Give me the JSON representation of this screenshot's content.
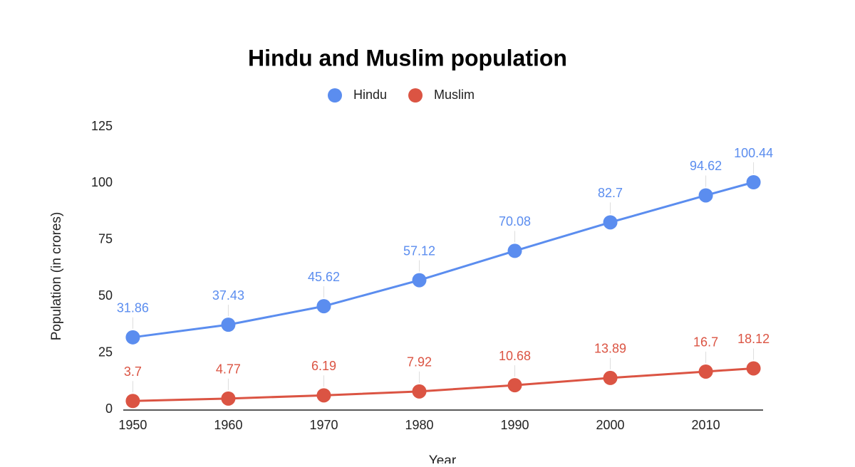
{
  "chart_data": {
    "type": "line",
    "title": "Hindu and Muslim population",
    "x_label": "Year",
    "y_label": "Population (in crores)",
    "x": [
      1950,
      1960,
      1970,
      1980,
      1990,
      2000,
      2010,
      2015
    ],
    "series": [
      {
        "name": "Hindu",
        "color": "#5b8def",
        "values": [
          31.86,
          37.43,
          45.62,
          57.12,
          70.08,
          82.7,
          94.62,
          100.44
        ]
      },
      {
        "name": "Muslim",
        "color": "#db5443",
        "values": [
          3.7,
          4.77,
          6.19,
          7.92,
          10.68,
          13.89,
          16.7,
          18.12
        ]
      }
    ],
    "xlim": [
      1949,
      2016
    ],
    "xticks": [
      1950,
      1960,
      1970,
      1980,
      1990,
      2000,
      2010
    ],
    "ylim": [
      0,
      125
    ],
    "yticks": [
      0,
      25,
      50,
      75,
      100,
      125
    ],
    "grid": false,
    "legend": "top"
  }
}
